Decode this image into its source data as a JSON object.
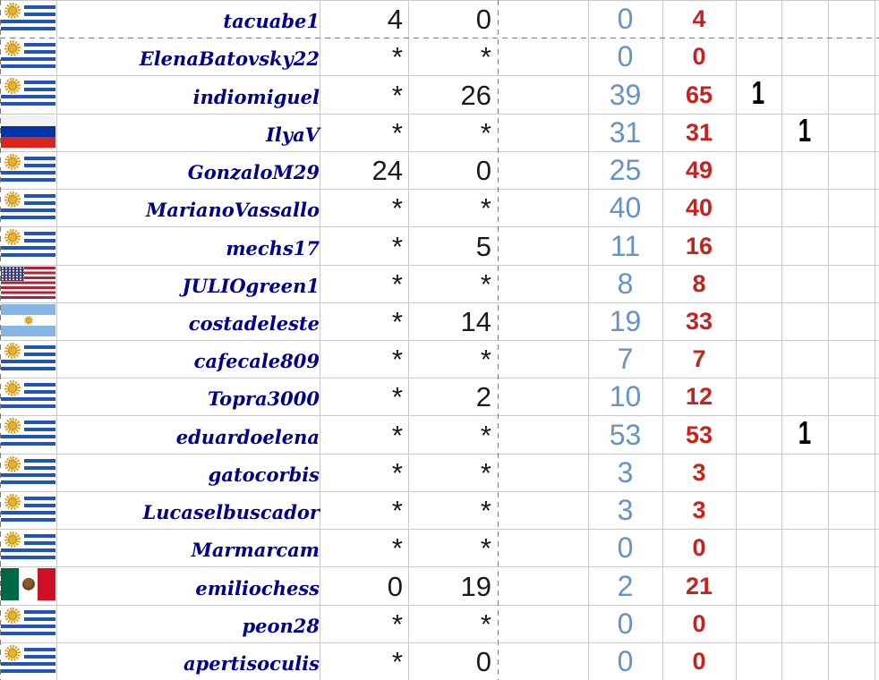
{
  "table": {
    "description": "tournament-standings-grid",
    "rows": [
      {
        "flag": "uy",
        "country": "Uruguay",
        "name": "tacuabe1",
        "round_a": "4",
        "round_b": "0",
        "subtotal": "0",
        "total": "4",
        "tie1": "",
        "tie2": ""
      },
      {
        "flag": "uy",
        "country": "Uruguay",
        "name": "ElenaBatovsky22",
        "round_a": "*",
        "round_b": "*",
        "subtotal": "0",
        "total": "0",
        "tie1": "",
        "tie2": ""
      },
      {
        "flag": "uy",
        "country": "Uruguay",
        "name": "indiomiguel",
        "round_a": "*",
        "round_b": "26",
        "subtotal": "39",
        "total": "65",
        "tie1": "1",
        "tie2": ""
      },
      {
        "flag": "ru",
        "country": "Russia",
        "name": "IlyaV",
        "round_a": "*",
        "round_b": "*",
        "subtotal": "31",
        "total": "31",
        "tie1": "",
        "tie2": "1"
      },
      {
        "flag": "uy",
        "country": "Uruguay",
        "name": "GonzaloM29",
        "round_a": "24",
        "round_b": "0",
        "subtotal": "25",
        "total": "49",
        "tie1": "",
        "tie2": ""
      },
      {
        "flag": "uy",
        "country": "Uruguay",
        "name": "MarianoVassallo",
        "round_a": "*",
        "round_b": "*",
        "subtotal": "40",
        "total": "40",
        "tie1": "",
        "tie2": ""
      },
      {
        "flag": "uy",
        "country": "Uruguay",
        "name": "mechs17",
        "round_a": "*",
        "round_b": "5",
        "subtotal": "11",
        "total": "16",
        "tie1": "",
        "tie2": ""
      },
      {
        "flag": "us",
        "country": "United States",
        "name": "JULIOgreen1",
        "round_a": "*",
        "round_b": "*",
        "subtotal": "8",
        "total": "8",
        "tie1": "",
        "tie2": ""
      },
      {
        "flag": "ar",
        "country": "Argentina",
        "name": "costadeleste",
        "round_a": "*",
        "round_b": "14",
        "subtotal": "19",
        "total": "33",
        "tie1": "",
        "tie2": ""
      },
      {
        "flag": "uy",
        "country": "Uruguay",
        "name": "cafecale809",
        "round_a": "*",
        "round_b": "*",
        "subtotal": "7",
        "total": "7",
        "tie1": "",
        "tie2": ""
      },
      {
        "flag": "uy",
        "country": "Uruguay",
        "name": "Topra3000",
        "round_a": "*",
        "round_b": "2",
        "subtotal": "10",
        "total": "12",
        "tie1": "",
        "tie2": ""
      },
      {
        "flag": "uy",
        "country": "Uruguay",
        "name": "eduardoelena",
        "round_a": "*",
        "round_b": "*",
        "subtotal": "53",
        "total": "53",
        "tie1": "",
        "tie2": "1"
      },
      {
        "flag": "uy",
        "country": "Uruguay",
        "name": "gatocorbis",
        "round_a": "*",
        "round_b": "*",
        "subtotal": "3",
        "total": "3",
        "tie1": "",
        "tie2": ""
      },
      {
        "flag": "uy",
        "country": "Uruguay",
        "name": "Lucaselbuscador",
        "round_a": "*",
        "round_b": "*",
        "subtotal": "3",
        "total": "3",
        "tie1": "",
        "tie2": ""
      },
      {
        "flag": "uy",
        "country": "Uruguay",
        "name": "Marmarcam",
        "round_a": "*",
        "round_b": "*",
        "subtotal": "0",
        "total": "0",
        "tie1": "",
        "tie2": ""
      },
      {
        "flag": "mx",
        "country": "Mexico",
        "name": "emiliochess",
        "round_a": "0",
        "round_b": "19",
        "subtotal": "2",
        "total": "21",
        "tie1": "",
        "tie2": ""
      },
      {
        "flag": "uy",
        "country": "Uruguay",
        "name": "peon28",
        "round_a": "*",
        "round_b": "*",
        "subtotal": "0",
        "total": "0",
        "tie1": "",
        "tie2": ""
      },
      {
        "flag": "uy",
        "country": "Uruguay",
        "name": "apertisoculis",
        "round_a": "*",
        "round_b": "0",
        "subtotal": "0",
        "total": "0",
        "tie1": "",
        "tie2": ""
      }
    ]
  },
  "colors": {
    "subtotal_blue": "#6793c3",
    "total_red": "#c5231e",
    "username_navy": "#00008b",
    "score_black": "#1a1a1a",
    "gridline_gray": "#c9c9c9",
    "pagebreak_gray": "#7b7b7b"
  }
}
